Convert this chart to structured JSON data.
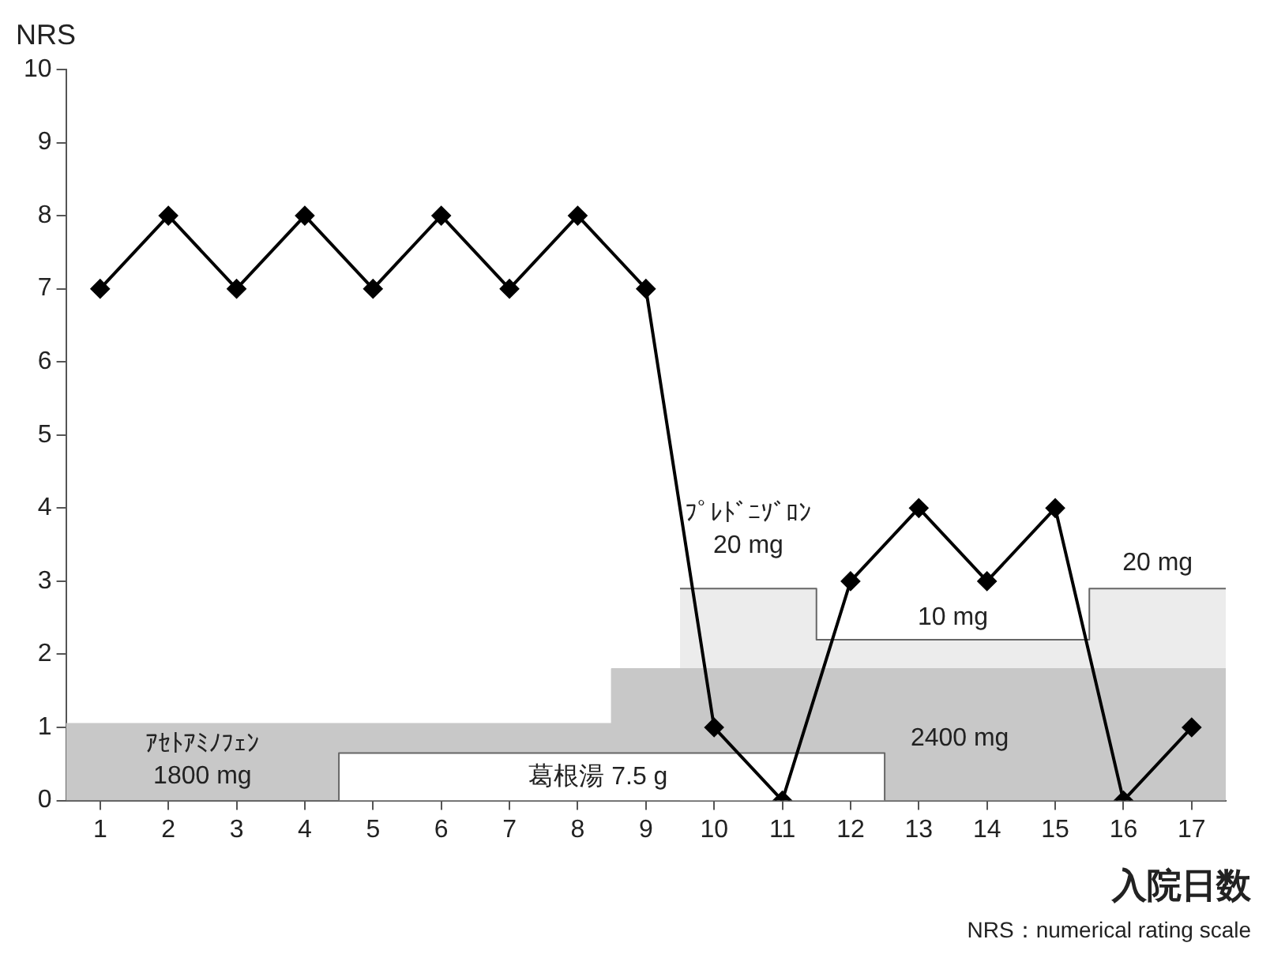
{
  "chart_data": {
    "type": "line",
    "ylabel": "NRS",
    "xlabel": "入院日数",
    "series": [
      {
        "type": "area",
        "color": "#ececec",
        "x": [
          9.5,
          11.5,
          11.5,
          15.5,
          15.5,
          17.5
        ],
        "values": [
          2.9,
          2.9,
          2.2,
          2.2,
          2.9,
          2.9
        ]
      },
      {
        "type": "area",
        "color": "#c8c8c8",
        "x": [
          0.5,
          8.5,
          8.5,
          17.5
        ],
        "values": [
          1.05,
          1.05,
          1.8,
          1.8
        ]
      },
      {
        "type": "area",
        "color": "#ffffff",
        "x": [
          4.5,
          4.5,
          12.5,
          12.5
        ],
        "values": [
          0,
          0.65,
          0.65,
          0
        ]
      },
      {
        "color": "#000000",
        "marker": "diamond",
        "x": [
          1,
          2,
          3,
          4,
          5,
          6,
          7,
          8,
          9,
          10,
          11,
          12,
          13,
          14,
          15,
          16,
          17
        ],
        "values": [
          7,
          8,
          7,
          8,
          7,
          8,
          7,
          8,
          7,
          1,
          0,
          3,
          4,
          3,
          4,
          0,
          1
        ]
      }
    ],
    "annotations": [
      "ｱｾﾄｱﾐﾉﾌｪﾝ\n1800 mg",
      "葛根湯 7.5 g",
      "2400 mg",
      "ﾌﾟﾚﾄﾞﾆｿﾞﾛﾝ\n20 mg",
      "10 mg",
      "20 mg",
      "NRS：numerical rating scale"
    ],
    "xlim": [
      0.5,
      17.5
    ],
    "xticks": [
      1,
      2,
      3,
      4,
      5,
      6,
      7,
      8,
      9,
      10,
      11,
      12,
      13,
      14,
      15,
      16,
      17
    ],
    "ylim": [
      0,
      10
    ],
    "yticks": [
      0,
      1,
      2,
      3,
      4,
      5,
      6,
      7,
      8,
      9,
      10
    ],
    "grid": false,
    "legend": false,
    "line_style": "solid"
  }
}
